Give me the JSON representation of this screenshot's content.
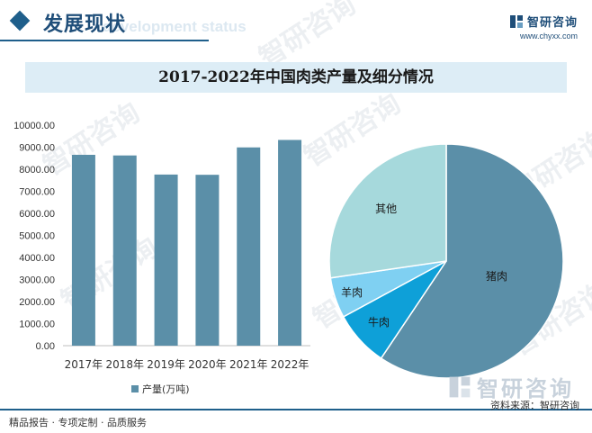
{
  "header": {
    "title": "发展现状",
    "subtitle_en": "development status",
    "logo_name": "智研咨询",
    "logo_url": "www.chyxx.com"
  },
  "chart_title": "2017-2022年中国肉类产量及细分情况",
  "legend_label": "产量(万吨)",
  "footer": {
    "left": "精品报告 · 专项定制 · 品质服务",
    "right": "资料来源：智研咨询"
  },
  "watermark_text": "智研咨询",
  "colors": {
    "bar": "#5b8fa8",
    "pie_pork": "#5b8fa8",
    "pie_beef": "#0ea0d8",
    "pie_mutton": "#7fd0f2",
    "pie_other": "#a6d9dc",
    "accent": "#1f5f8b"
  },
  "chart_data": [
    {
      "type": "bar",
      "categories": [
        "2017年",
        "2018年",
        "2019年",
        "2020年",
        "2021年",
        "2022年"
      ],
      "series": [
        {
          "name": "产量(万吨)",
          "values": [
            8654,
            8625,
            7759,
            7748,
            8990,
            9328
          ]
        }
      ],
      "ylim": [
        0,
        10000
      ],
      "yticks": [
        "0.00",
        "1000.00",
        "2000.00",
        "3000.00",
        "4000.00",
        "5000.00",
        "6000.00",
        "7000.00",
        "8000.00",
        "9000.00",
        "10000.00"
      ],
      "legend": "bottom"
    },
    {
      "type": "pie",
      "labels": [
        "猪肉",
        "牛肉",
        "羊肉",
        "其他"
      ],
      "values": [
        59.4,
        7.7,
        5.6,
        27.3
      ]
    }
  ]
}
